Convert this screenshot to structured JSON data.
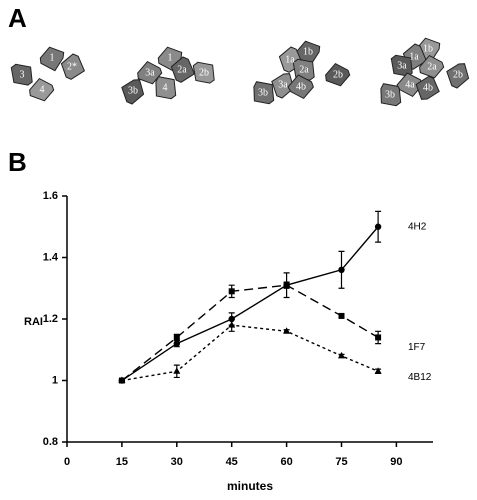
{
  "panel_a": {
    "label": "A",
    "clusters": [
      {
        "cells": [
          "1",
          "2*",
          "3",
          "4"
        ]
      },
      {
        "cells": [
          "1",
          "2a",
          "2b",
          "3a",
          "3b",
          "4"
        ]
      },
      {
        "cells": [
          "1b",
          "1a",
          "2a",
          "2b",
          "3a",
          "3b",
          "4b"
        ]
      },
      {
        "cells": [
          "1b",
          "1a",
          "3a",
          "2a",
          "2b",
          "3b",
          "4a",
          "4b"
        ]
      }
    ]
  },
  "chart_data": {
    "type": "line",
    "panel_label": "B",
    "x_label": "minutes",
    "y_label": "RAI",
    "x": [
      15,
      30,
      45,
      60,
      75,
      85
    ],
    "series": [
      {
        "name": "4H2",
        "color": "#000000",
        "line_style": "solid",
        "marker": "circle",
        "values": [
          1.0,
          1.12,
          1.2,
          1.31,
          1.36,
          1.5
        ],
        "errors": [
          0,
          0.01,
          0.02,
          0.04,
          0.06,
          0.05
        ]
      },
      {
        "name": "1F7",
        "color": "#000000",
        "line_style": "dashed",
        "marker": "square",
        "values": [
          1.0,
          1.14,
          1.29,
          1.31,
          1.21,
          1.14
        ],
        "errors": [
          0,
          0.01,
          0.02,
          0.01,
          0.005,
          0.02
        ]
      },
      {
        "name": "4B12",
        "color": "#000000",
        "line_style": "dotted",
        "marker": "triangle",
        "values": [
          1.0,
          1.03,
          1.18,
          1.16,
          1.08,
          1.03
        ],
        "errors": [
          0,
          0.02,
          0.02,
          0.005,
          0.005,
          0.007
        ]
      }
    ],
    "xlim": [
      0,
      100
    ],
    "xticks": [
      0,
      15,
      30,
      45,
      60,
      75,
      90
    ],
    "ylim": [
      0.8,
      1.6
    ],
    "yticks": [
      0.8,
      1,
      1.2,
      1.4,
      1.6
    ]
  }
}
